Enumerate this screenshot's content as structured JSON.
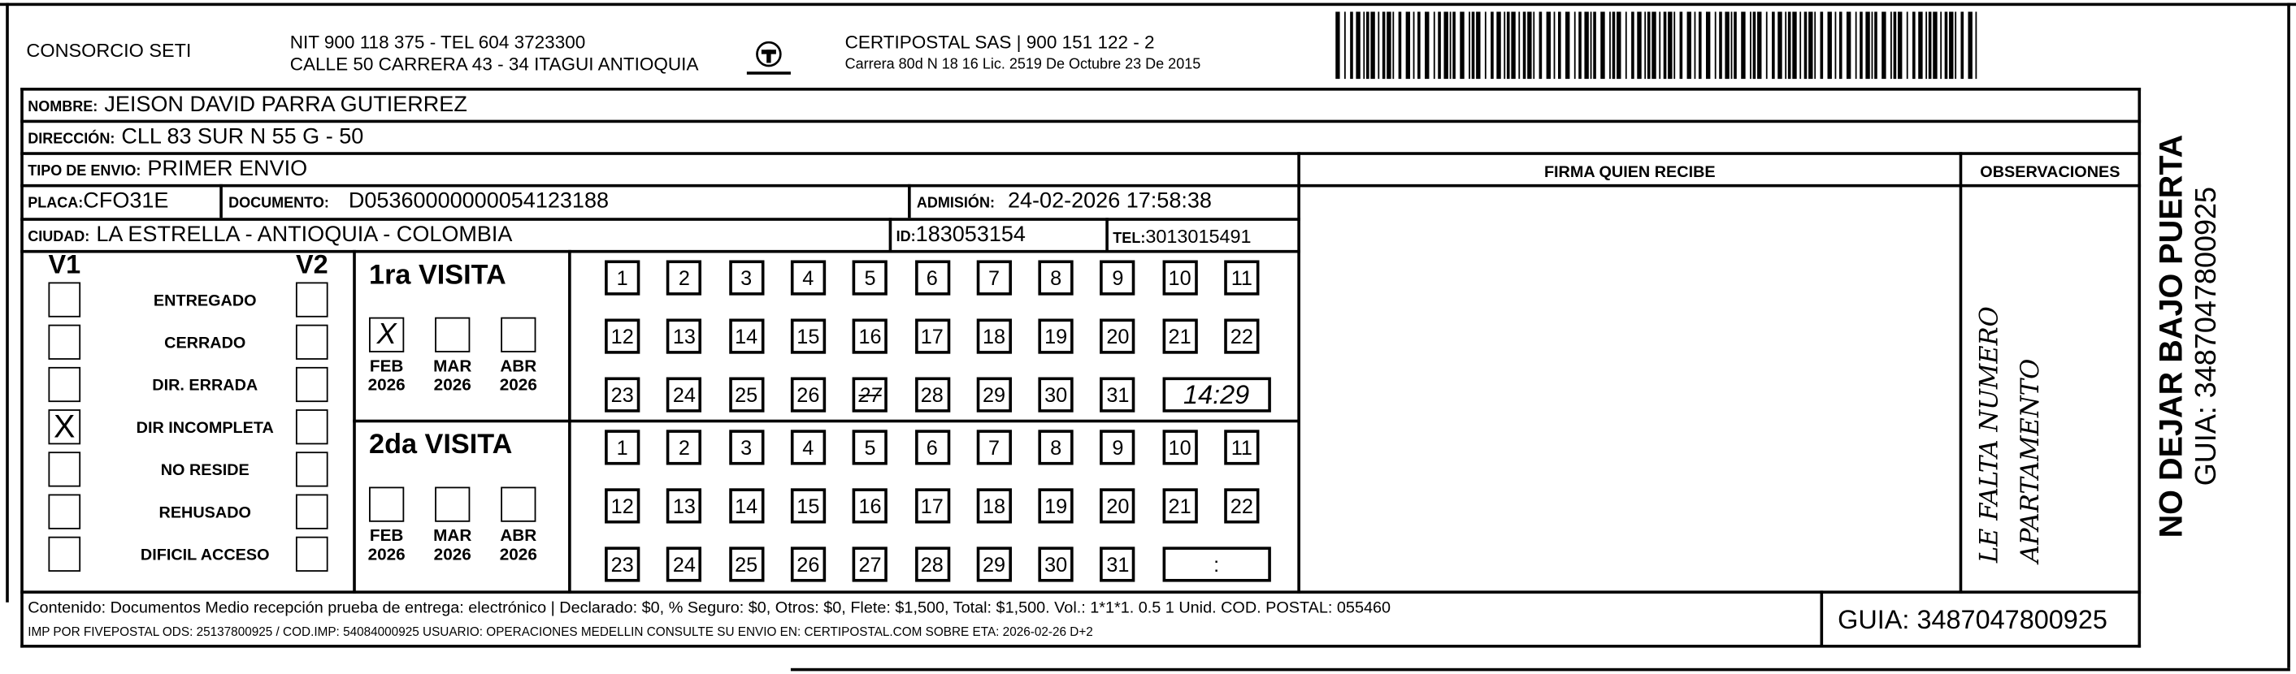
{
  "header": {
    "company": "CONSORCIO SETI",
    "nit_line": "NIT 900 118 375 - TEL 604 3723300",
    "address_line": "CALLE 50 CARRERA 43 - 34 ITAGUI ANTIOQUIA",
    "logo_text": "CERTIPOSTAL",
    "carrier_line": "CERTIPOSTAL SAS | 900 151 122 - 2",
    "license_line": "Carrera 80d N 18 16  Lic. 2519 De Octubre 23 De 2015"
  },
  "recipient": {
    "nombre_label": "NOMBRE:",
    "nombre": "JEISON DAVID PARRA GUTIERREZ",
    "direccion_label": "DIRECCIÓN:",
    "direccion": "CLL 83 SUR N 55 G - 50",
    "tipo_label": "TIPO DE ENVIO:",
    "tipo": "PRIMER ENVIO",
    "placa_label": "PLACA:",
    "placa": "CFO31E",
    "documento_label": "DOCUMENTO:",
    "documento": "D05360000000054123188",
    "admision_label": "ADMISIÓN:",
    "admision": "24-02-2026 17:58:38",
    "ciudad_label": "CIUDAD:",
    "ciudad": "LA ESTRELLA - ANTIOQUIA - COLOMBIA",
    "id_label": "ID:",
    "id": "183053154",
    "tel_label": "TEL:",
    "tel": "3013015491"
  },
  "firma_label": "FIRMA QUIEN RECIBE",
  "observaciones_label": "OBSERVACIONES",
  "observaciones_handwritten": [
    "LE FALTA NUMERO",
    "APARTAMENTO"
  ],
  "status": {
    "v1_label": "V1",
    "v2_label": "V2",
    "items": [
      {
        "label": "ENTREGADO",
        "v1": false,
        "v2": false
      },
      {
        "label": "CERRADO",
        "v1": false,
        "v2": false
      },
      {
        "label": "DIR. ERRADA",
        "v1": false,
        "v2": false
      },
      {
        "label": "DIR INCOMPLETA",
        "v1": true,
        "v2": false
      },
      {
        "label": "NO RESIDE",
        "v1": false,
        "v2": false
      },
      {
        "label": "REHUSADO",
        "v1": false,
        "v2": false
      },
      {
        "label": "DIFICIL ACCESO",
        "v1": false,
        "v2": false
      }
    ]
  },
  "visits": [
    {
      "title": "1ra VISITA",
      "months": [
        {
          "m": "FEB",
          "y": "2026",
          "mark": "X"
        },
        {
          "m": "MAR",
          "y": "2026",
          "mark": ""
        },
        {
          "m": "ABR",
          "y": "2026",
          "mark": ""
        }
      ],
      "marked_day": "27",
      "time": "14:29"
    },
    {
      "title": "2da VISITA",
      "months": [
        {
          "m": "FEB",
          "y": "2026",
          "mark": ""
        },
        {
          "m": "MAR",
          "y": "2026",
          "mark": ""
        },
        {
          "m": "ABR",
          "y": "2026",
          "mark": ""
        }
      ],
      "marked_day": "",
      "time": ":"
    }
  ],
  "days": [
    "1",
    "2",
    "3",
    "4",
    "5",
    "6",
    "7",
    "8",
    "9",
    "10",
    "11",
    "12",
    "13",
    "14",
    "15",
    "16",
    "17",
    "18",
    "19",
    "20",
    "21",
    "22",
    "23",
    "24",
    "25",
    "26",
    "27",
    "28",
    "29",
    "30",
    "31"
  ],
  "footer": {
    "line1": "Contenido: Documentos Medio recepción prueba de entrega: electrónico | Declarado: $0, % Seguro: $0, Otros: $0, Flete: $1,500, Total: $1,500. Vol.: 1*1*1. 0.5  1 Unid. COD. POSTAL: 055460",
    "line2": "IMP POR FIVEPOSTAL ODS: 25137800925 / COD.IMP: 54084000925 USUARIO: OPERACIONES MEDELLIN CONSULTE SU ENVIO EN: CERTIPOSTAL.COM SOBRE ETA: 2026-02-26 D+2",
    "guia": "GUIA: 3487047800925"
  },
  "side": {
    "warning": "NO DEJAR BAJO PUERTA",
    "guia": "GUIA: 3487047800925"
  }
}
